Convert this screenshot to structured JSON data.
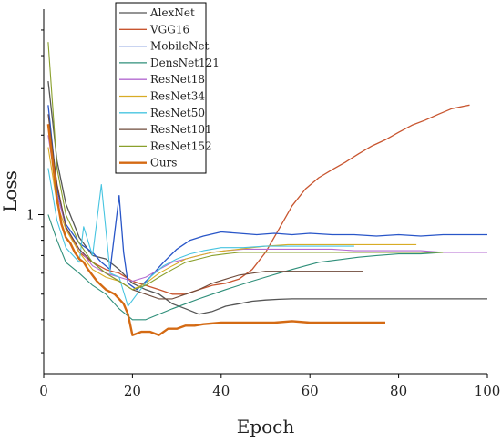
{
  "chart_data": {
    "type": "line",
    "title": "",
    "xlabel": "Epoch",
    "ylabel": "Loss",
    "xlim": [
      0,
      100
    ],
    "xticks": [
      0,
      20,
      40,
      60,
      80,
      100
    ],
    "yscale": "log",
    "ylim": [
      0.25,
      6
    ],
    "yticks": [
      1
    ],
    "ytick_labels": [
      "1"
    ],
    "grid": false,
    "legend_position": "top-left",
    "series": [
      {
        "name": "AlexNet",
        "color": "#555555",
        "width": 1.3,
        "x": [
          1,
          3,
          5,
          8,
          11,
          14,
          17,
          20,
          23,
          26,
          29,
          32,
          35,
          38,
          41,
          44,
          47,
          50,
          53,
          56,
          59,
          62,
          65,
          70,
          80,
          90,
          100
        ],
        "y": [
          3.2,
          1.6,
          1.1,
          0.82,
          0.7,
          0.68,
          0.62,
          0.55,
          0.52,
          0.5,
          0.46,
          0.44,
          0.42,
          0.43,
          0.45,
          0.46,
          0.47,
          0.475,
          0.478,
          0.48,
          0.48,
          0.48,
          0.48,
          0.48,
          0.48,
          0.48,
          0.48
        ]
      },
      {
        "name": "VGG16",
        "color": "#c8552f",
        "width": 1.3,
        "x": [
          1,
          3,
          5,
          8,
          11,
          14,
          17,
          20,
          23,
          26,
          29,
          32,
          35,
          38,
          41,
          44,
          47,
          50,
          53,
          56,
          59,
          62,
          65,
          68,
          71,
          74,
          77,
          80,
          83,
          86,
          89,
          92,
          95,
          96
        ],
        "y": [
          2.2,
          1.3,
          0.9,
          0.72,
          0.66,
          0.62,
          0.6,
          0.56,
          0.54,
          0.52,
          0.5,
          0.5,
          0.52,
          0.54,
          0.55,
          0.57,
          0.62,
          0.72,
          0.88,
          1.08,
          1.25,
          1.38,
          1.48,
          1.58,
          1.7,
          1.82,
          1.92,
          2.05,
          2.18,
          2.28,
          2.4,
          2.52,
          2.58,
          2.6
        ]
      },
      {
        "name": "MobileNet",
        "color": "#2956c8",
        "width": 1.3,
        "x": [
          1,
          3,
          5,
          8,
          11,
          13,
          15,
          17,
          18,
          19,
          21,
          24,
          27,
          30,
          33,
          36,
          40,
          44,
          48,
          52,
          56,
          60,
          65,
          70,
          75,
          80,
          85,
          90,
          95,
          100
        ],
        "y": [
          2.6,
          1.25,
          0.92,
          0.78,
          0.72,
          0.66,
          0.62,
          1.18,
          0.72,
          0.55,
          0.52,
          0.58,
          0.66,
          0.74,
          0.8,
          0.83,
          0.86,
          0.85,
          0.84,
          0.85,
          0.84,
          0.85,
          0.84,
          0.84,
          0.83,
          0.84,
          0.83,
          0.84,
          0.84,
          0.84
        ]
      },
      {
        "name": "DensNet121",
        "color": "#2f8f7a",
        "width": 1.1,
        "x": [
          1,
          3,
          5,
          8,
          11,
          14,
          17,
          20,
          23,
          26,
          29,
          32,
          35,
          38,
          41,
          44,
          47,
          50,
          53,
          56,
          59,
          62,
          65,
          68,
          71,
          75,
          80,
          85,
          90
        ],
        "y": [
          1.0,
          0.8,
          0.66,
          0.6,
          0.54,
          0.5,
          0.44,
          0.4,
          0.4,
          0.42,
          0.44,
          0.46,
          0.48,
          0.5,
          0.52,
          0.54,
          0.56,
          0.58,
          0.6,
          0.62,
          0.64,
          0.66,
          0.67,
          0.68,
          0.69,
          0.7,
          0.71,
          0.71,
          0.72
        ]
      },
      {
        "name": "ResNet18",
        "color": "#b36ad1",
        "width": 1.1,
        "x": [
          1,
          3,
          5,
          8,
          11,
          14,
          17,
          20,
          23,
          26,
          29,
          32,
          35,
          38,
          41,
          45,
          50,
          55,
          60,
          65,
          70,
          75,
          80,
          85,
          90,
          95,
          100
        ],
        "y": [
          2.0,
          1.2,
          0.9,
          0.74,
          0.64,
          0.6,
          0.58,
          0.56,
          0.58,
          0.62,
          0.66,
          0.68,
          0.7,
          0.72,
          0.73,
          0.74,
          0.74,
          0.74,
          0.74,
          0.74,
          0.73,
          0.73,
          0.73,
          0.73,
          0.72,
          0.72,
          0.72
        ]
      },
      {
        "name": "ResNet34",
        "color": "#d8ac25",
        "width": 1.1,
        "x": [
          1,
          3,
          5,
          8,
          11,
          14,
          17,
          20,
          23,
          26,
          29,
          32,
          35,
          38,
          41,
          44,
          47,
          50,
          55,
          60,
          65,
          70,
          75,
          80,
          84
        ],
        "y": [
          1.8,
          1.1,
          0.88,
          0.72,
          0.62,
          0.58,
          0.56,
          0.52,
          0.55,
          0.6,
          0.64,
          0.68,
          0.7,
          0.72,
          0.73,
          0.74,
          0.75,
          0.76,
          0.77,
          0.77,
          0.77,
          0.77,
          0.77,
          0.77,
          0.77
        ]
      },
      {
        "name": "ResNet50",
        "color": "#47c4e0",
        "width": 1.1,
        "x": [
          1,
          3,
          5,
          8,
          9,
          11,
          13,
          15,
          17,
          19,
          21,
          24,
          27,
          30,
          33,
          36,
          40,
          45,
          50,
          55,
          60,
          65,
          70
        ],
        "y": [
          1.5,
          0.95,
          0.75,
          0.66,
          0.9,
          0.7,
          1.3,
          0.6,
          0.58,
          0.45,
          0.5,
          0.58,
          0.64,
          0.68,
          0.71,
          0.73,
          0.75,
          0.75,
          0.76,
          0.76,
          0.76,
          0.76,
          0.76
        ]
      },
      {
        "name": "ResNet101",
        "color": "#6e4a3a",
        "width": 1.1,
        "x": [
          1,
          3,
          5,
          8,
          11,
          14,
          17,
          20,
          23,
          26,
          29,
          32,
          35,
          38,
          41,
          44,
          47,
          50,
          55,
          60,
          65,
          70,
          72
        ],
        "y": [
          2.4,
          1.3,
          0.9,
          0.74,
          0.66,
          0.6,
          0.56,
          0.52,
          0.5,
          0.48,
          0.48,
          0.5,
          0.52,
          0.55,
          0.57,
          0.59,
          0.6,
          0.61,
          0.61,
          0.61,
          0.61,
          0.61,
          0.61
        ]
      },
      {
        "name": "ResNet152",
        "color": "#8aa02c",
        "width": 1.1,
        "x": [
          1,
          3,
          5,
          8,
          11,
          14,
          17,
          20,
          23,
          26,
          29,
          32,
          35,
          38,
          41,
          44,
          47,
          50,
          55,
          60,
          65,
          70,
          75,
          80,
          85,
          90
        ],
        "y": [
          4.5,
          1.5,
          1.0,
          0.78,
          0.66,
          0.6,
          0.56,
          0.52,
          0.54,
          0.58,
          0.62,
          0.66,
          0.68,
          0.7,
          0.71,
          0.72,
          0.72,
          0.72,
          0.72,
          0.72,
          0.72,
          0.72,
          0.72,
          0.72,
          0.72,
          0.72
        ]
      },
      {
        "name": "Ours",
        "color": "#d46a13",
        "width": 2.4,
        "x": [
          1,
          2,
          3,
          4,
          5,
          6,
          7,
          8,
          9,
          10,
          12,
          14,
          16,
          18,
          19,
          20,
          22,
          24,
          26,
          28,
          30,
          32,
          34,
          36,
          40,
          44,
          48,
          52,
          56,
          60,
          64,
          68,
          72,
          77
        ],
        "y": [
          2.2,
          1.6,
          1.15,
          0.92,
          0.82,
          0.78,
          0.72,
          0.68,
          0.66,
          0.62,
          0.56,
          0.52,
          0.5,
          0.46,
          0.42,
          0.35,
          0.36,
          0.36,
          0.35,
          0.37,
          0.37,
          0.38,
          0.38,
          0.385,
          0.39,
          0.39,
          0.39,
          0.39,
          0.395,
          0.39,
          0.39,
          0.39,
          0.39,
          0.39
        ]
      }
    ]
  }
}
